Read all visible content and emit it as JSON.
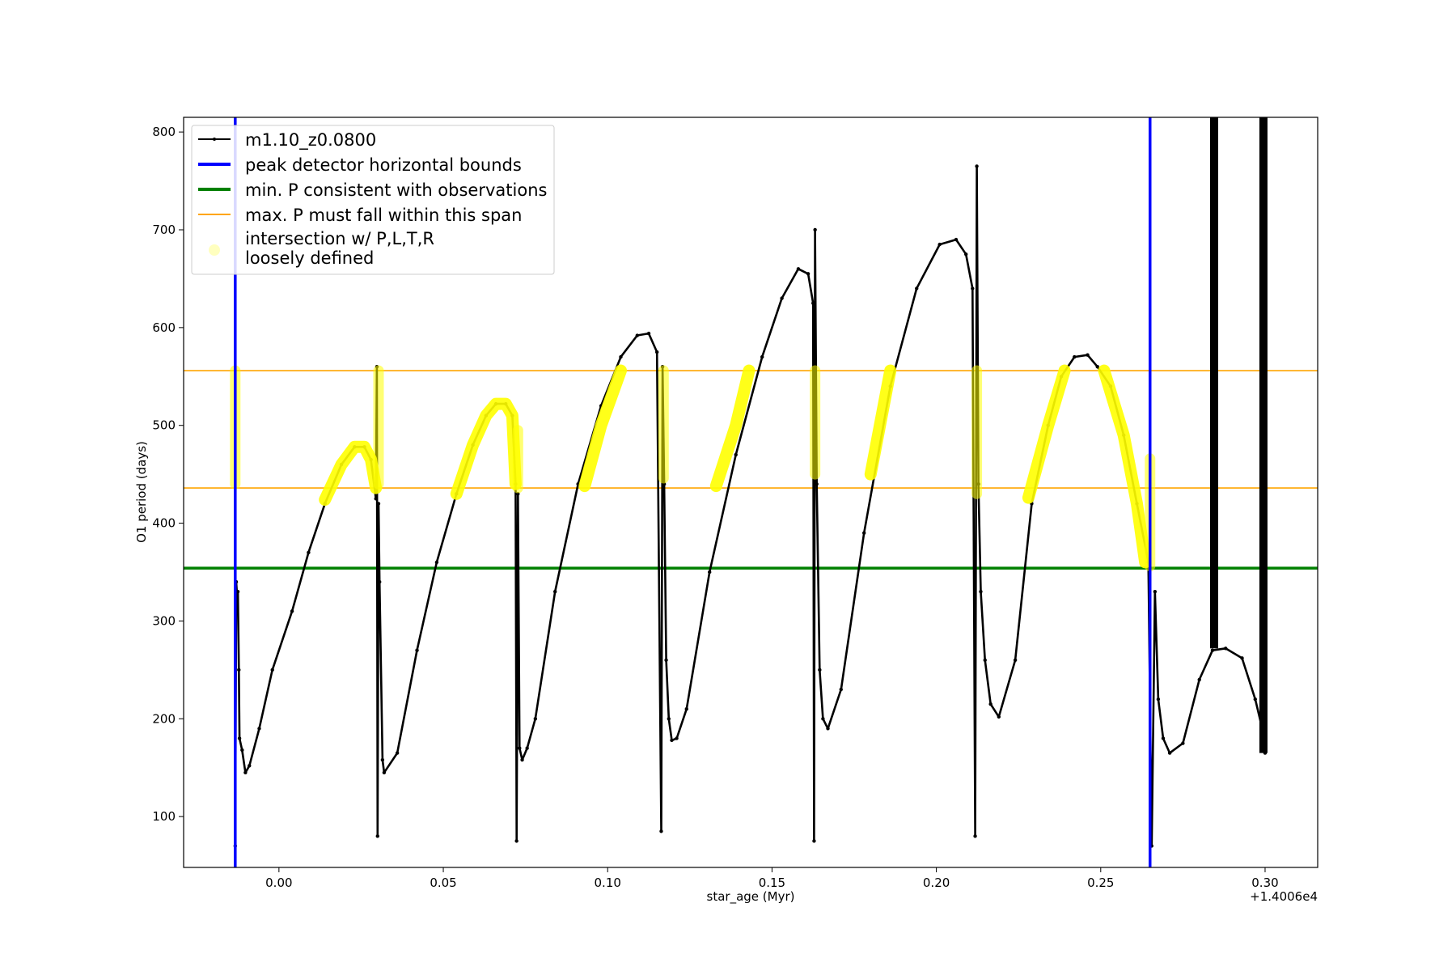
{
  "chart_data": {
    "type": "line",
    "xlabel": "star_age (Myr)",
    "ylabel": "O1 period (days)",
    "x_offset_label": "+1.4006e4",
    "xlim": [
      -0.029,
      0.316
    ],
    "ylim": [
      48,
      815
    ],
    "x_ticks": [
      0.0,
      0.05,
      0.1,
      0.15,
      0.2,
      0.25,
      0.3
    ],
    "x_tick_labels": [
      "0.00",
      "0.05",
      "0.10",
      "0.15",
      "0.20",
      "0.25",
      "0.30"
    ],
    "y_ticks": [
      100,
      200,
      300,
      400,
      500,
      600,
      700,
      800
    ],
    "y_tick_labels": [
      "100",
      "200",
      "300",
      "400",
      "500",
      "600",
      "700",
      "800"
    ],
    "grid": false,
    "legend_position": "top-left",
    "series": [
      {
        "name": "m1.10_z0.0800",
        "color": "#000000",
        "style": "line-with-dots",
        "x": [
          -0.0133,
          -0.013,
          -0.0128,
          -0.0125,
          -0.0122,
          -0.012,
          -0.0112,
          -0.0102,
          -0.009,
          -0.006,
          -0.002,
          0.004,
          0.009,
          0.014,
          0.019,
          0.023,
          0.026,
          0.028,
          0.0295,
          0.0298,
          0.03,
          0.0303,
          0.0306,
          0.0315,
          0.032,
          0.036,
          0.042,
          0.048,
          0.054,
          0.059,
          0.063,
          0.066,
          0.069,
          0.071,
          0.072,
          0.0723,
          0.0727,
          0.0732,
          0.074,
          0.0755,
          0.078,
          0.084,
          0.091,
          0.098,
          0.104,
          0.109,
          0.1125,
          0.115,
          0.1163,
          0.1167,
          0.1172,
          0.1178,
          0.1186,
          0.1195,
          0.121,
          0.124,
          0.131,
          0.139,
          0.147,
          0.153,
          0.158,
          0.161,
          0.1625,
          0.1628,
          0.1631,
          0.1636,
          0.1645,
          0.1655,
          0.167,
          0.171,
          0.178,
          0.186,
          0.194,
          0.201,
          0.206,
          0.209,
          0.211,
          0.2118,
          0.2123,
          0.2128,
          0.2135,
          0.2148,
          0.2165,
          0.219,
          0.224,
          0.229,
          0.234,
          0.238,
          0.242,
          0.246,
          0.249,
          0.253,
          0.257,
          0.261,
          0.2645,
          0.2655,
          0.2665,
          0.2675,
          0.269,
          0.271,
          0.275,
          0.28,
          0.284,
          0.288,
          0.293,
          0.297,
          0.2995,
          0.3
        ],
        "y": [
          70,
          340,
          330,
          330,
          250,
          180,
          168,
          145,
          152,
          190,
          250,
          310,
          370,
          420,
          460,
          478,
          478,
          465,
          425,
          560,
          80,
          420,
          340,
          158,
          145,
          165,
          270,
          360,
          430,
          480,
          510,
          522,
          522,
          510,
          440,
          75,
          430,
          170,
          158,
          170,
          200,
          330,
          440,
          520,
          570,
          592,
          594,
          575,
          85,
          560,
          440,
          260,
          200,
          178,
          180,
          210,
          350,
          470,
          570,
          630,
          660,
          655,
          625,
          75,
          700,
          440,
          250,
          200,
          190,
          230,
          390,
          540,
          640,
          685,
          690,
          675,
          640,
          80,
          765,
          440,
          330,
          260,
          215,
          202,
          260,
          420,
          500,
          550,
          570,
          572,
          560,
          540,
          490,
          420,
          360,
          70,
          330,
          220,
          180,
          165,
          175,
          240,
          270,
          272,
          262,
          220,
          185,
          165
        ]
      }
    ],
    "extra_marks": [
      {
        "name": "peak detector horizontal bounds",
        "color": "#0000ff",
        "kind": "vertical-lines",
        "x": [
          -0.0133,
          0.265
        ]
      },
      {
        "name": "min. P consistent with observations",
        "color": "#008000",
        "kind": "horizontal-line",
        "y": 354
      },
      {
        "name": "max. P must fall within this span",
        "color": "#ffa500",
        "kind": "horizontal-lines",
        "y": [
          436,
          556
        ]
      },
      {
        "name": "intersection w/ P,L,T,R\nloosely defined",
        "color": "#ffff00",
        "kind": "highlight-segments",
        "segments": [
          {
            "x": [
              0.014,
              0.019,
              0.023,
              0.026,
              0.028,
              0.0295
            ],
            "y": [
              424,
              460,
              478,
              478,
              465,
              436
            ]
          },
          {
            "x": [
              0.054,
              0.059,
              0.063,
              0.066,
              0.069,
              0.071,
              0.072
            ],
            "y": [
              430,
              480,
              510,
              522,
              522,
              510,
              440
            ]
          },
          {
            "x": [
              0.093,
              0.098,
              0.104
            ],
            "y": [
              438,
              500,
              556
            ]
          },
          {
            "x": [
              0.133,
              0.139,
              0.143
            ],
            "y": [
              438,
              500,
              556
            ]
          },
          {
            "x": [
              0.18,
              0.186
            ],
            "y": [
              450,
              556
            ]
          },
          {
            "x": [
              0.228,
              0.234,
              0.239
            ],
            "y": [
              426,
              500,
              556
            ]
          },
          {
            "x": [
              0.251,
              0.257,
              0.261,
              0.2635
            ],
            "y": [
              556,
              490,
              420,
              360
            ]
          }
        ],
        "vertical_bands": [
          {
            "x": -0.0133,
            "y": [
              440,
              556
            ]
          },
          {
            "x": 0.0303,
            "y": [
              440,
              556
            ]
          },
          {
            "x": 0.0727,
            "y": [
              436,
              495
            ]
          },
          {
            "x": 0.117,
            "y": [
              446,
              556
            ]
          },
          {
            "x": 0.1631,
            "y": [
              450,
              556
            ]
          },
          {
            "x": 0.2123,
            "y": [
              430,
              556
            ]
          },
          {
            "x": 0.265,
            "y": [
              356,
              466
            ]
          }
        ]
      }
    ],
    "black_bands": [
      {
        "x": 0.2845,
        "y": [
          272,
          815
        ]
      },
      {
        "x": 0.2995,
        "y": [
          165,
          815
        ]
      }
    ]
  }
}
